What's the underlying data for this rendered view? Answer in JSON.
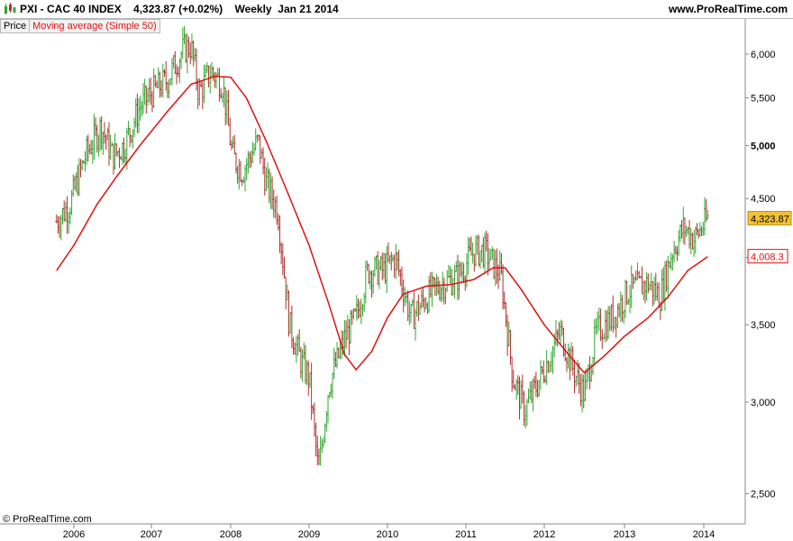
{
  "header": {
    "symbol": "PXI - CAC 40 INDEX",
    "last_change": "4,323.87 (+0.02%)",
    "period": "Weekly",
    "date": "Jan 21 2014",
    "site": "www.ProRealTime.com"
  },
  "legend": {
    "price_label": "Price",
    "ma_label": "Moving average (Simple 50)"
  },
  "copyright": "© ProRealTime.com",
  "colors": {
    "up": "#2fa82f",
    "down": "#b03030",
    "ma": "#e01010",
    "axis": "#888888",
    "last_price_bg": "#f2c232",
    "ma_tag_border": "#e01010"
  },
  "chart_data": {
    "type": "candlestick",
    "x_axis": {
      "ticks": [
        "2006",
        "2007",
        "2008",
        "2009",
        "2010",
        "2011",
        "2012",
        "2013",
        "2014"
      ]
    },
    "y_axis": {
      "scale": "log",
      "ticks": [
        "2,500",
        "3,000",
        "3,500",
        "4,000",
        "4,500",
        "5,000",
        "5,500",
        "6,000"
      ],
      "range": [
        2400,
        6300
      ]
    },
    "last_price_label": "4,323.87",
    "ma_last_label": "4,008.3",
    "price_path": [
      [
        2005.78,
        4300
      ],
      [
        2005.95,
        4450
      ],
      [
        2006.15,
        4900
      ],
      [
        2006.35,
        5200
      ],
      [
        2006.5,
        4900
      ],
      [
        2006.65,
        5000
      ],
      [
        2006.85,
        5400
      ],
      [
        2007.0,
        5550
      ],
      [
        2007.2,
        5700
      ],
      [
        2007.4,
        6050
      ],
      [
        2007.5,
        6100
      ],
      [
        2007.6,
        5550
      ],
      [
        2007.75,
        5800
      ],
      [
        2007.9,
        5650
      ],
      [
        2008.02,
        4900
      ],
      [
        2008.15,
        4750
      ],
      [
        2008.35,
        5050
      ],
      [
        2008.45,
        4650
      ],
      [
        2008.6,
        4400
      ],
      [
        2008.75,
        3500
      ],
      [
        2008.9,
        3250
      ],
      [
        2009.0,
        3150
      ],
      [
        2009.12,
        2600
      ],
      [
        2009.25,
        3100
      ],
      [
        2009.45,
        3400
      ],
      [
        2009.6,
        3550
      ],
      [
        2009.75,
        3900
      ],
      [
        2009.95,
        3900
      ],
      [
        2010.1,
        4000
      ],
      [
        2010.3,
        3550
      ],
      [
        2010.5,
        3700
      ],
      [
        2010.7,
        3800
      ],
      [
        2010.9,
        3850
      ],
      [
        2011.1,
        4050
      ],
      [
        2011.25,
        4050
      ],
      [
        2011.45,
        3850
      ],
      [
        2011.6,
        3150
      ],
      [
        2011.75,
        2950
      ],
      [
        2011.95,
        3150
      ],
      [
        2012.2,
        3450
      ],
      [
        2012.4,
        3150
      ],
      [
        2012.5,
        3050
      ],
      [
        2012.65,
        3450
      ],
      [
        2012.85,
        3550
      ],
      [
        2013.05,
        3750
      ],
      [
        2013.3,
        3800
      ],
      [
        2013.45,
        3700
      ],
      [
        2013.6,
        4050
      ],
      [
        2013.75,
        4250
      ],
      [
        2013.88,
        4150
      ],
      [
        2014.05,
        4323.87
      ]
    ],
    "moving_average": [
      [
        2005.78,
        3900
      ],
      [
        2006.0,
        4100
      ],
      [
        2006.3,
        4450
      ],
      [
        2006.55,
        4700
      ],
      [
        2006.85,
        5000
      ],
      [
        2007.2,
        5350
      ],
      [
        2007.5,
        5650
      ],
      [
        2007.8,
        5740
      ],
      [
        2008.0,
        5730
      ],
      [
        2008.2,
        5500
      ],
      [
        2008.45,
        5050
      ],
      [
        2008.7,
        4600
      ],
      [
        2009.0,
        4100
      ],
      [
        2009.25,
        3650
      ],
      [
        2009.45,
        3300
      ],
      [
        2009.6,
        3200
      ],
      [
        2009.8,
        3320
      ],
      [
        2010.0,
        3550
      ],
      [
        2010.2,
        3720
      ],
      [
        2010.5,
        3780
      ],
      [
        2010.8,
        3790
      ],
      [
        2011.1,
        3830
      ],
      [
        2011.35,
        3920
      ],
      [
        2011.5,
        3920
      ],
      [
        2011.7,
        3760
      ],
      [
        2012.0,
        3500
      ],
      [
        2012.3,
        3300
      ],
      [
        2012.5,
        3180
      ],
      [
        2012.75,
        3290
      ],
      [
        2013.0,
        3420
      ],
      [
        2013.3,
        3550
      ],
      [
        2013.55,
        3700
      ],
      [
        2013.8,
        3900
      ],
      [
        2014.05,
        4008.3
      ]
    ]
  }
}
